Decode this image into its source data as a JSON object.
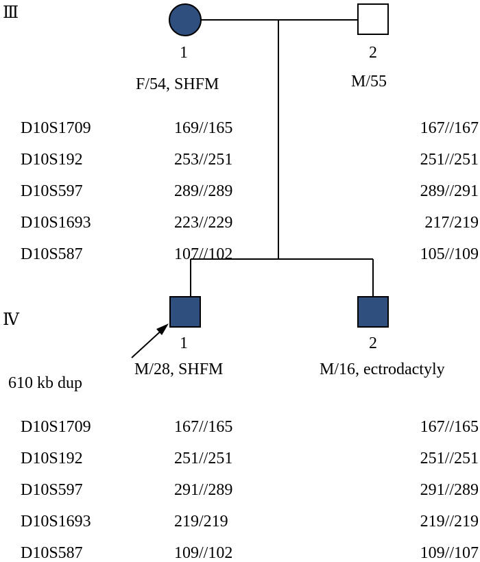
{
  "generations": {
    "gen3": "Ⅲ",
    "gen4": "Ⅳ"
  },
  "individuals": {
    "III1": {
      "number": "1",
      "info": "F/54, SHFM",
      "affected": true,
      "sex": "female"
    },
    "III2": {
      "number": "2",
      "info": "M/55",
      "affected": false,
      "sex": "male"
    },
    "IV1": {
      "number": "1",
      "info": "M/28, SHFM",
      "affected": true,
      "sex": "male",
      "proband": true
    },
    "IV2": {
      "number": "2",
      "info": "M/16, ectrodactyly",
      "affected": true,
      "sex": "male"
    }
  },
  "dup_label": "610 kb dup",
  "markers": [
    "D10S1709",
    "D10S192",
    "D10S597",
    "D10S1693",
    "D10S587"
  ],
  "haplotypes": {
    "III1": [
      "169//165",
      "253//251",
      "289//289",
      "223//229",
      "107//102"
    ],
    "III2": [
      "167//167",
      "251//251",
      "289//291",
      "217/219",
      "105//109"
    ],
    "IV1": [
      "167//165",
      "251//251",
      "291//289",
      "219/219",
      "109//102"
    ],
    "IV2": [
      "167//165",
      "251//251",
      "291//289",
      "219//219",
      "109//107"
    ]
  },
  "colors": {
    "affected_fill": "#2f4f7f",
    "line": "#000000"
  }
}
